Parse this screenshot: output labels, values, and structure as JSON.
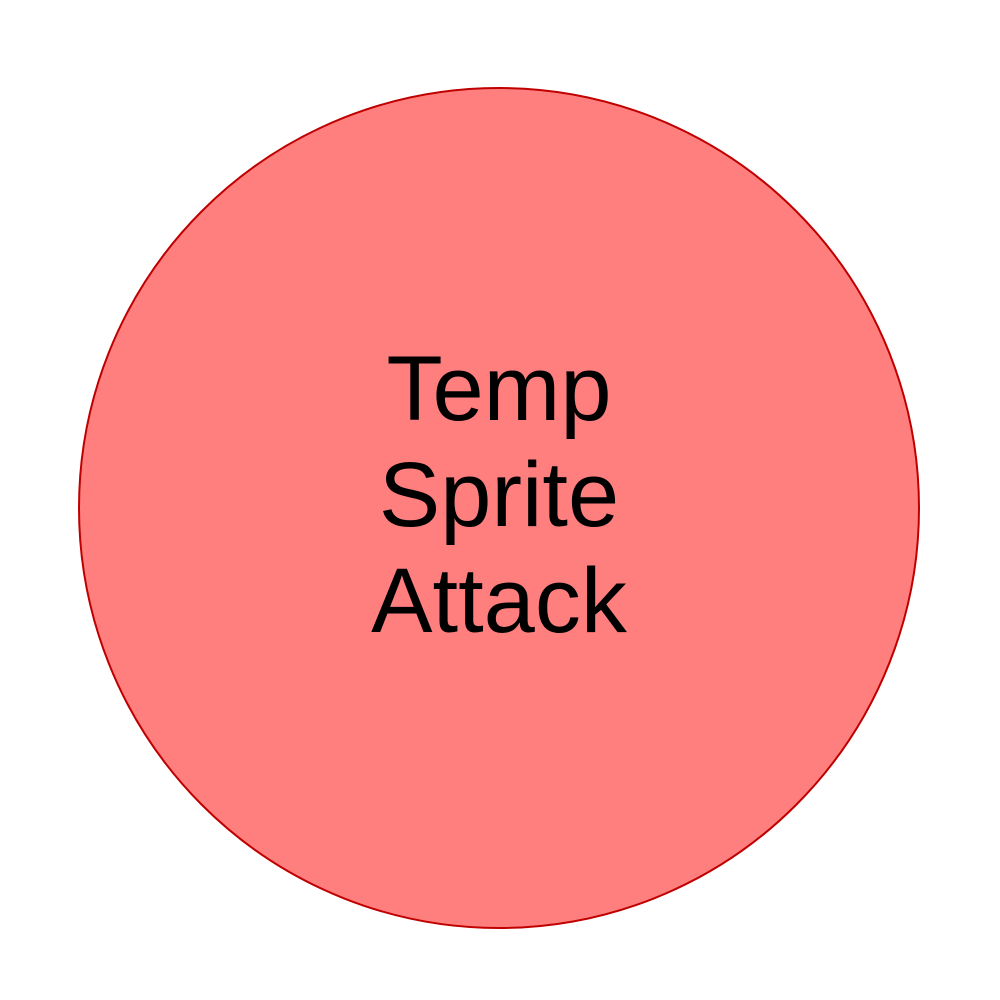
{
  "sprite": {
    "lines": [
      "Temp",
      "Sprite",
      "Attack"
    ],
    "fill_color": "#FF7F7F",
    "border_color": "#C00000"
  }
}
